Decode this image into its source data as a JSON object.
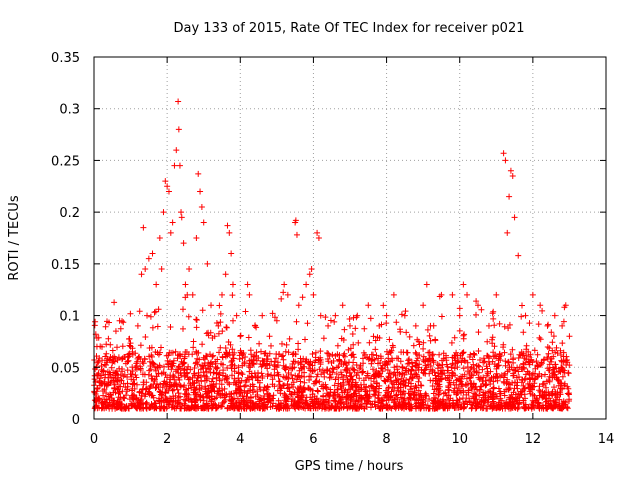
{
  "chart_data": {
    "type": "scatter",
    "title": "Day 133 of 2015, Rate Of TEC Index for receiver p021",
    "xlabel": "GPS time / hours",
    "ylabel": "ROTI / TECUs",
    "xlim": [
      0,
      14
    ],
    "ylim": [
      0,
      0.35
    ],
    "xticks": [
      0,
      2,
      4,
      6,
      8,
      10,
      12,
      14
    ],
    "yticks": [
      0,
      0.05,
      0.1,
      0.15,
      0.2,
      0.25,
      0.3,
      0.35
    ],
    "xtick_labels": [
      "0",
      "2",
      "4",
      "6",
      "8",
      "10",
      "12",
      "14"
    ],
    "ytick_labels": [
      "0",
      "0.05",
      "0.1",
      "0.15",
      "0.2",
      "0.25",
      "0.3",
      "0.35"
    ],
    "grid": true,
    "marker": "+",
    "color": "#ff0000",
    "series": [
      {
        "name": "ROTI",
        "x": [
          0.05,
          0.08,
          0.1,
          0.12,
          0.2,
          0.3,
          0.45,
          0.6,
          0.7,
          0.85,
          1.0,
          1.2,
          1.3,
          1.35,
          1.4,
          1.45,
          1.5,
          1.6,
          1.7,
          1.8,
          1.85,
          1.9,
          1.95,
          2.0,
          2.05,
          2.1,
          2.15,
          2.2,
          2.25,
          2.3,
          2.32,
          2.35,
          2.38,
          2.4,
          2.45,
          2.5,
          2.55,
          2.6,
          2.7,
          2.8,
          2.85,
          2.9,
          2.95,
          3.0,
          3.1,
          3.2,
          3.4,
          3.5,
          3.6,
          3.65,
          3.7,
          3.75,
          3.8,
          3.9,
          4.0,
          4.2,
          4.25,
          4.4,
          4.6,
          4.8,
          5.0,
          5.2,
          5.3,
          5.5,
          5.52,
          5.55,
          5.6,
          5.8,
          5.9,
          5.95,
          6.0,
          6.1,
          6.15,
          6.2,
          6.4,
          6.6,
          6.8,
          7.0,
          7.2,
          7.5,
          7.8,
          8.0,
          8.2,
          8.5,
          8.8,
          9.0,
          9.1,
          9.2,
          9.5,
          9.8,
          10.0,
          10.1,
          10.2,
          10.5,
          10.8,
          11.0,
          11.2,
          11.25,
          11.3,
          11.35,
          11.4,
          11.45,
          11.5,
          11.6,
          11.8,
          12.0,
          12.2,
          12.4,
          12.6,
          12.8,
          12.9,
          13.0
        ],
        "y": [
          0.082,
          0.07,
          0.03,
          0.02,
          0.035,
          0.04,
          0.06,
          0.085,
          0.095,
          0.06,
          0.07,
          0.09,
          0.14,
          0.185,
          0.145,
          0.1,
          0.155,
          0.16,
          0.13,
          0.175,
          0.145,
          0.2,
          0.23,
          0.225,
          0.22,
          0.18,
          0.19,
          0.245,
          0.26,
          0.307,
          0.28,
          0.245,
          0.2,
          0.195,
          0.17,
          0.13,
          0.12,
          0.145,
          0.12,
          0.175,
          0.237,
          0.22,
          0.205,
          0.19,
          0.15,
          0.11,
          0.09,
          0.12,
          0.14,
          0.187,
          0.18,
          0.16,
          0.13,
          0.1,
          0.08,
          0.13,
          0.12,
          0.09,
          0.1,
          0.08,
          0.095,
          0.13,
          0.12,
          0.19,
          0.192,
          0.178,
          0.11,
          0.13,
          0.14,
          0.145,
          0.12,
          0.18,
          0.175,
          0.1,
          0.09,
          0.1,
          0.11,
          0.09,
          0.1,
          0.11,
          0.09,
          0.1,
          0.12,
          0.1,
          0.09,
          0.11,
          0.13,
          0.09,
          0.12,
          0.12,
          0.1,
          0.13,
          0.12,
          0.11,
          0.09,
          0.12,
          0.257,
          0.25,
          0.18,
          0.215,
          0.24,
          0.235,
          0.195,
          0.158,
          0.1,
          0.12,
          0.11,
          0.09,
          0.1,
          0.09,
          0.11,
          0.08
        ]
      }
    ]
  }
}
